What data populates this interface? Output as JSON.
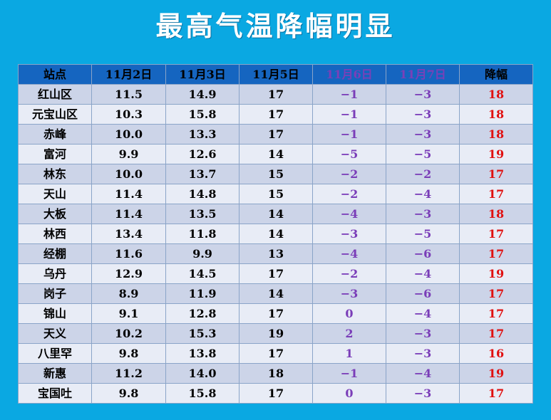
{
  "title": "最高气温降幅明显",
  "headers": [
    "站点",
    "11月2日",
    "11月3日",
    "11月5日",
    "11月6日",
    "11月7日",
    "降幅"
  ],
  "rows": [
    [
      "红山区",
      "11.5",
      "14.9",
      "17",
      "−1",
      "−3",
      "18"
    ],
    [
      "元宝山区",
      "10.3",
      "15.8",
      "17",
      "−1",
      "−3",
      "18"
    ],
    [
      "赤峰",
      "10.0",
      "13.3",
      "17",
      "−1",
      "−3",
      "18"
    ],
    [
      "富河",
      "9.9",
      "12.6",
      "14",
      "−5",
      "−5",
      "19"
    ],
    [
      "林东",
      "10.0",
      "13.7",
      "15",
      "−2",
      "−2",
      "17"
    ],
    [
      "天山",
      "11.4",
      "14.8",
      "15",
      "−2",
      "−4",
      "17"
    ],
    [
      "大板",
      "11.4",
      "13.5",
      "14",
      "−4",
      "−3",
      "18"
    ],
    [
      "林西",
      "13.4",
      "11.8",
      "14",
      "−3",
      "−5",
      "17"
    ],
    [
      "经棚",
      "11.6",
      "9.9",
      "13",
      "−4",
      "−6",
      "17"
    ],
    [
      "乌丹",
      "12.9",
      "14.5",
      "17",
      "−2",
      "−4",
      "19"
    ],
    [
      "岗子",
      "8.9",
      "11.9",
      "14",
      "−3",
      "−6",
      "17"
    ],
    [
      "锦山",
      "9.1",
      "12.8",
      "17",
      "0",
      "−4",
      "17"
    ],
    [
      "天义",
      "10.2",
      "15.3",
      "19",
      "2",
      "−3",
      "17"
    ],
    [
      "八里罕",
      "9.8",
      "13.8",
      "17",
      "1",
      "−3",
      "16"
    ],
    [
      "新惠",
      "11.2",
      "14.0",
      "18",
      "−1",
      "−4",
      "19"
    ],
    [
      "宝国吐",
      "9.8",
      "15.8",
      "17",
      "0",
      "−3",
      "17"
    ]
  ],
  "colors": {
    "background": "#0aa8e2",
    "header_bg": "#1565c0",
    "negative_text": "#7a3db8",
    "drop_text": "#e01010"
  }
}
